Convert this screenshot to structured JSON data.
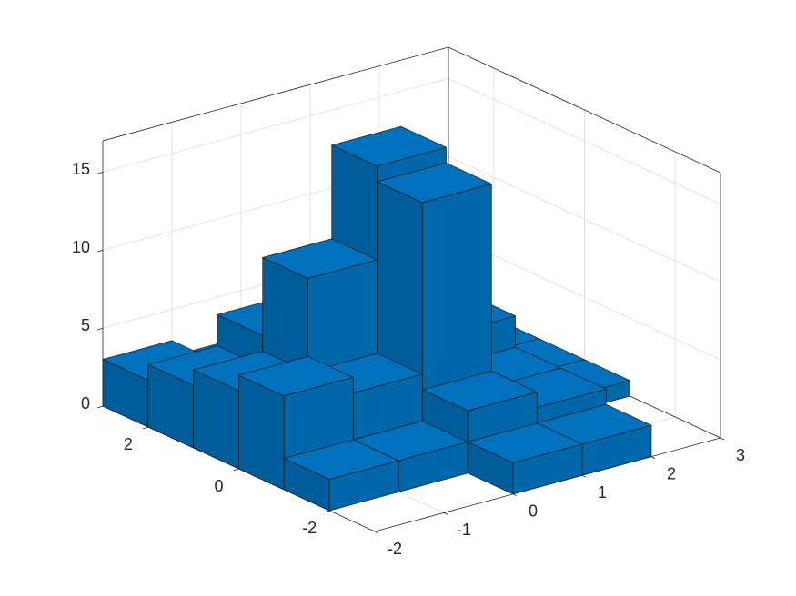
{
  "chart_data": {
    "type": "histogram2",
    "xbins": [
      -2,
      -1,
      0,
      1,
      2,
      3
    ],
    "ybins": [
      -3,
      -2,
      -1,
      0,
      1,
      2,
      3
    ],
    "values": [
      [
        0,
        2,
        6,
        5,
        4,
        3
      ],
      [
        0,
        2,
        5,
        11,
        6,
        2
      ],
      [
        2,
        4,
        16,
        17,
        3,
        1
      ],
      [
        2,
        3,
        3,
        5,
        2,
        1
      ],
      [
        0,
        0,
        1,
        1,
        1,
        0
      ]
    ],
    "color": "#0072bd",
    "xlim": [
      -2,
      3
    ],
    "ylim": [
      -3,
      3
    ],
    "zlim": [
      0,
      17
    ],
    "xticks": [
      -2,
      -1,
      0,
      1,
      2,
      3
    ],
    "yticks": [
      -2,
      0,
      2
    ],
    "zticks": [
      0,
      5,
      10,
      15
    ],
    "grid": true
  }
}
